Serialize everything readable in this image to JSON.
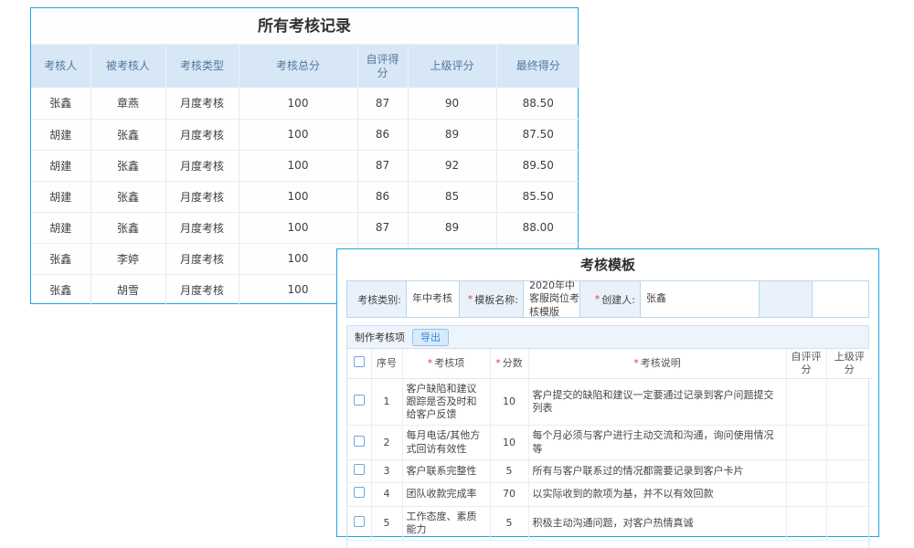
{
  "records_panel": {
    "title": "所有考核记录",
    "columns": [
      "考核人",
      "被考核人",
      "考核类型",
      "考核总分",
      "自评得分",
      "上级评分",
      "最终得分"
    ],
    "rows": [
      [
        "张鑫",
        "章燕",
        "月度考核",
        "100",
        "87",
        "90",
        "88.50"
      ],
      [
        "胡建",
        "张鑫",
        "月度考核",
        "100",
        "86",
        "89",
        "87.50"
      ],
      [
        "胡建",
        "张鑫",
        "月度考核",
        "100",
        "87",
        "92",
        "89.50"
      ],
      [
        "胡建",
        "张鑫",
        "月度考核",
        "100",
        "86",
        "85",
        "85.50"
      ],
      [
        "胡建",
        "张鑫",
        "月度考核",
        "100",
        "87",
        "89",
        "88.00"
      ],
      [
        "张鑫",
        "李婷",
        "月度考核",
        "100",
        "",
        "",
        ""
      ],
      [
        "张鑫",
        "胡雪",
        "月度考核",
        "100",
        "",
        "",
        ""
      ]
    ]
  },
  "template_panel": {
    "title": "考核模板",
    "required_mark": "*",
    "form": {
      "fields": [
        {
          "label": "考核类别:",
          "required": false,
          "value": "年中考核"
        },
        {
          "label": "模板名称:",
          "required": true,
          "value": "2020年中客服岗位考核模版"
        },
        {
          "label": "创建人:",
          "required": true,
          "value": "张鑫"
        }
      ]
    },
    "toolbar": {
      "section_label": "制作考核项",
      "export_button": "导出"
    },
    "items_table": {
      "columns": [
        {
          "label": "",
          "checkbox": true,
          "required": false
        },
        {
          "label": "序号",
          "checkbox": false,
          "required": false
        },
        {
          "label": "考核项",
          "checkbox": false,
          "required": true
        },
        {
          "label": "分数",
          "checkbox": false,
          "required": true
        },
        {
          "label": "考核说明",
          "checkbox": false,
          "required": true
        },
        {
          "label": "自评评分",
          "checkbox": false,
          "required": false
        },
        {
          "label": "上级评分",
          "checkbox": false,
          "required": false
        }
      ],
      "rows": [
        {
          "seq": "1",
          "item": "客户缺陷和建议跟踪是否及时和给客户反馈",
          "score": "10",
          "desc": "客户提交的缺陷和建议一定要通过记录到客户问题提交列表",
          "self_score": "",
          "superior_score": ""
        },
        {
          "seq": "2",
          "item": "每月电话/其他方式回访有效性",
          "score": "10",
          "desc": "每个月必须与客户进行主动交流和沟通，询问使用情况等",
          "self_score": "",
          "superior_score": ""
        },
        {
          "seq": "3",
          "item": "客户联系完整性",
          "score": "5",
          "desc": "所有与客户联系过的情况都需要记录到客户卡片",
          "self_score": "",
          "superior_score": ""
        },
        {
          "seq": "4",
          "item": "团队收款完成率",
          "score": "70",
          "desc": "以实际收到的款项为基，并不以有效回款",
          "self_score": "",
          "superior_score": ""
        },
        {
          "seq": "5",
          "item": "工作态度、素质能力",
          "score": "5",
          "desc": "积极主动沟通问题，对客户热情真诚",
          "self_score": "",
          "superior_score": ""
        }
      ]
    }
  },
  "colors": {
    "accent_border": "#19a7e3",
    "records_header_bg": "#d8e7f6",
    "records_header_text": "#54779e",
    "form_strip_bg": "#e9f2fb",
    "form_strip_border": "#b9d6ef",
    "required_mark": "#e03c3c",
    "export_button_text": "#3a8ad8",
    "export_button_bg": "#d9ebfa"
  }
}
